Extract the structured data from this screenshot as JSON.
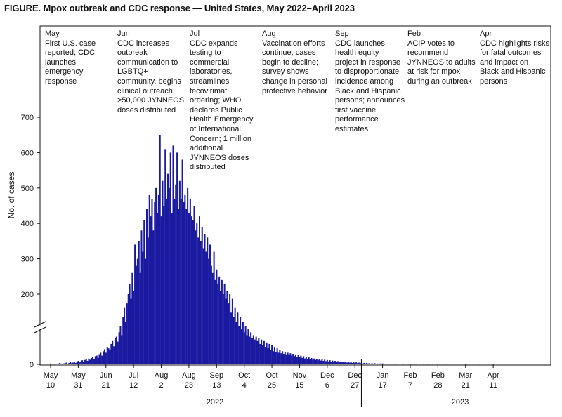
{
  "figure_title": "FIGURE. Mpox outbreak and CDC response — United States, May 2022–April 2023",
  "colors": {
    "bar": "#1a1aa0",
    "axis": "#111111"
  },
  "annotations": [
    {
      "month": "May",
      "text": "First U.S. case\nreported; CDC\nlaunches\nemergency\nresponse"
    },
    {
      "month": "Jun",
      "text": "CDC increases\noutbreak\ncommunication to\nLGBTQ+\ncommunity, begins\nclinical outreach;\n>50,000 JYNNEOS\ndoses distributed"
    },
    {
      "month": "Jul",
      "text": "CDC expands\ntesting to\ncommercial\nlaboratories,\nstreamlines\ntecovirimat\nordering; WHO\ndeclares Public\nHealth Emergency\nof International\nConcern; 1 million\nadditional\nJYNNEOS doses\ndistributed"
    },
    {
      "month": "Aug",
      "text": "Vaccination efforts\ncontinue; cases\nbegin to decline;\nsurvey shows\nchange in personal\nprotective behavior"
    },
    {
      "month": "Sep",
      "text": "CDC launches\nhealth equity\nproject in response\nto disproportionate\nincidence among\nBlack and Hispanic\npersons; announces\nfirst vaccine\nperformance\nestimates"
    },
    {
      "month": "Feb",
      "text": "ACIP votes to\nrecommend\nJYNNEOS to adults\nat risk for mpox\nduring an outbreak"
    },
    {
      "month": "Apr",
      "text": "CDC highlights risks\nfor fatal outcomes\nand impact on\nBlack and Hispanic\npersons"
    }
  ],
  "chart_data": {
    "type": "bar",
    "ylabel": "No. of cases",
    "yticks": [
      0,
      200,
      300,
      400,
      500,
      600,
      700
    ],
    "axis_break": true,
    "x_start": "2022-05-10",
    "x_end": "2023-04-30",
    "xticks": [
      {
        "month": "May",
        "day": "10"
      },
      {
        "month": "May",
        "day": "31"
      },
      {
        "month": "Jun",
        "day": "21"
      },
      {
        "month": "Jul",
        "day": "12"
      },
      {
        "month": "Aug",
        "day": "2"
      },
      {
        "month": "Aug",
        "day": "23"
      },
      {
        "month": "Sep",
        "day": "13"
      },
      {
        "month": "Oct",
        "day": "4"
      },
      {
        "month": "Oct",
        "day": "25"
      },
      {
        "month": "Nov",
        "day": "15"
      },
      {
        "month": "Dec",
        "day": "6"
      },
      {
        "month": "Dec",
        "day": "27"
      },
      {
        "month": "Jan",
        "day": "17"
      },
      {
        "month": "Feb",
        "day": "7"
      },
      {
        "month": "Feb",
        "day": "28"
      },
      {
        "month": "Mar",
        "day": "21"
      },
      {
        "month": "Apr",
        "day": "11"
      }
    ],
    "years": [
      {
        "label": "2022"
      },
      {
        "label": "2023"
      }
    ],
    "series": [
      {
        "values": [
          3,
          0,
          2,
          1,
          2,
          0,
          3,
          5,
          2,
          1,
          3,
          4,
          6,
          2,
          5,
          8,
          4,
          6,
          9,
          5,
          8,
          12,
          7,
          10,
          14,
          9,
          15,
          18,
          12,
          20,
          16,
          22,
          25,
          18,
          28,
          30,
          22,
          35,
          40,
          30,
          45,
          52,
          40,
          60,
          55,
          48,
          70,
          80,
          62,
          90,
          95,
          78,
          110,
          130,
          100,
          150,
          170,
          140,
          180,
          200,
          230,
          190,
          260,
          210,
          340,
          280,
          300,
          350,
          260,
          380,
          320,
          410,
          300,
          440,
          360,
          480,
          420,
          470,
          380,
          460,
          500,
          430,
          480,
          650,
          420,
          520,
          450,
          610,
          470,
          540,
          500,
          600,
          430,
          620,
          470,
          510,
          600,
          440,
          520,
          470,
          580,
          460,
          480,
          440,
          500,
          430,
          470,
          420,
          410,
          450,
          380,
          400,
          360,
          420,
          350,
          390,
          330,
          370,
          320,
          360,
          300,
          340,
          280,
          260,
          320,
          240,
          270,
          230,
          250,
          210,
          240,
          200,
          230,
          190,
          210,
          180,
          200,
          160,
          190,
          150,
          170,
          140,
          160,
          130,
          150,
          120,
          140,
          110,
          130,
          100,
          120,
          95,
          110,
          90,
          100,
          85,
          95,
          80,
          90,
          70,
          85,
          65,
          80,
          60,
          75,
          55,
          70,
          50,
          65,
          45,
          60,
          42,
          55,
          40,
          50,
          38,
          45,
          36,
          42,
          34,
          40,
          32,
          38,
          30,
          36,
          28,
          34,
          26,
          32,
          24,
          30,
          22,
          28,
          20,
          26,
          18,
          24,
          17,
          22,
          16,
          20,
          15,
          19,
          14,
          18,
          13,
          17,
          12,
          16,
          11,
          15,
          10,
          14,
          9,
          13,
          9,
          12,
          8,
          11,
          8,
          10,
          7,
          9,
          7,
          9,
          6,
          8,
          6,
          8,
          5,
          7,
          5,
          7,
          4,
          6,
          4,
          6,
          3,
          5,
          3,
          5,
          3,
          4,
          2,
          4,
          2,
          4,
          2,
          3,
          2,
          3,
          1,
          3,
          1,
          2,
          1,
          2,
          1,
          2,
          1,
          2,
          1,
          2,
          1,
          2,
          0,
          2,
          1,
          1,
          0,
          2,
          1,
          1,
          0,
          1,
          1,
          0,
          1,
          1,
          0,
          1,
          2,
          0,
          1,
          0,
          1,
          1,
          0,
          1,
          0,
          1,
          0,
          0,
          1,
          0,
          1,
          0,
          0,
          1,
          0,
          0,
          1,
          0,
          0,
          0,
          1,
          0,
          0,
          0,
          0,
          1,
          0,
          0,
          0,
          0,
          0,
          1,
          0,
          0,
          0,
          0,
          0,
          0,
          0,
          0,
          1,
          0,
          0,
          0,
          0,
          0,
          0,
          0,
          0,
          0,
          0,
          0,
          0,
          0,
          0,
          0,
          0,
          0,
          0,
          0,
          0,
          0,
          0,
          0,
          0,
          0,
          0,
          0,
          0,
          0,
          0,
          0,
          0,
          0,
          0,
          0,
          0,
          0,
          0,
          0,
          0,
          0,
          0,
          0,
          0,
          0,
          0,
          0,
          0,
          0,
          0,
          0,
          0,
          0,
          0,
          0,
          0,
          0,
          0,
          0,
          0,
          0,
          0,
          0,
          0,
          0,
          0,
          0,
          0,
          0,
          0
        ]
      }
    ]
  }
}
